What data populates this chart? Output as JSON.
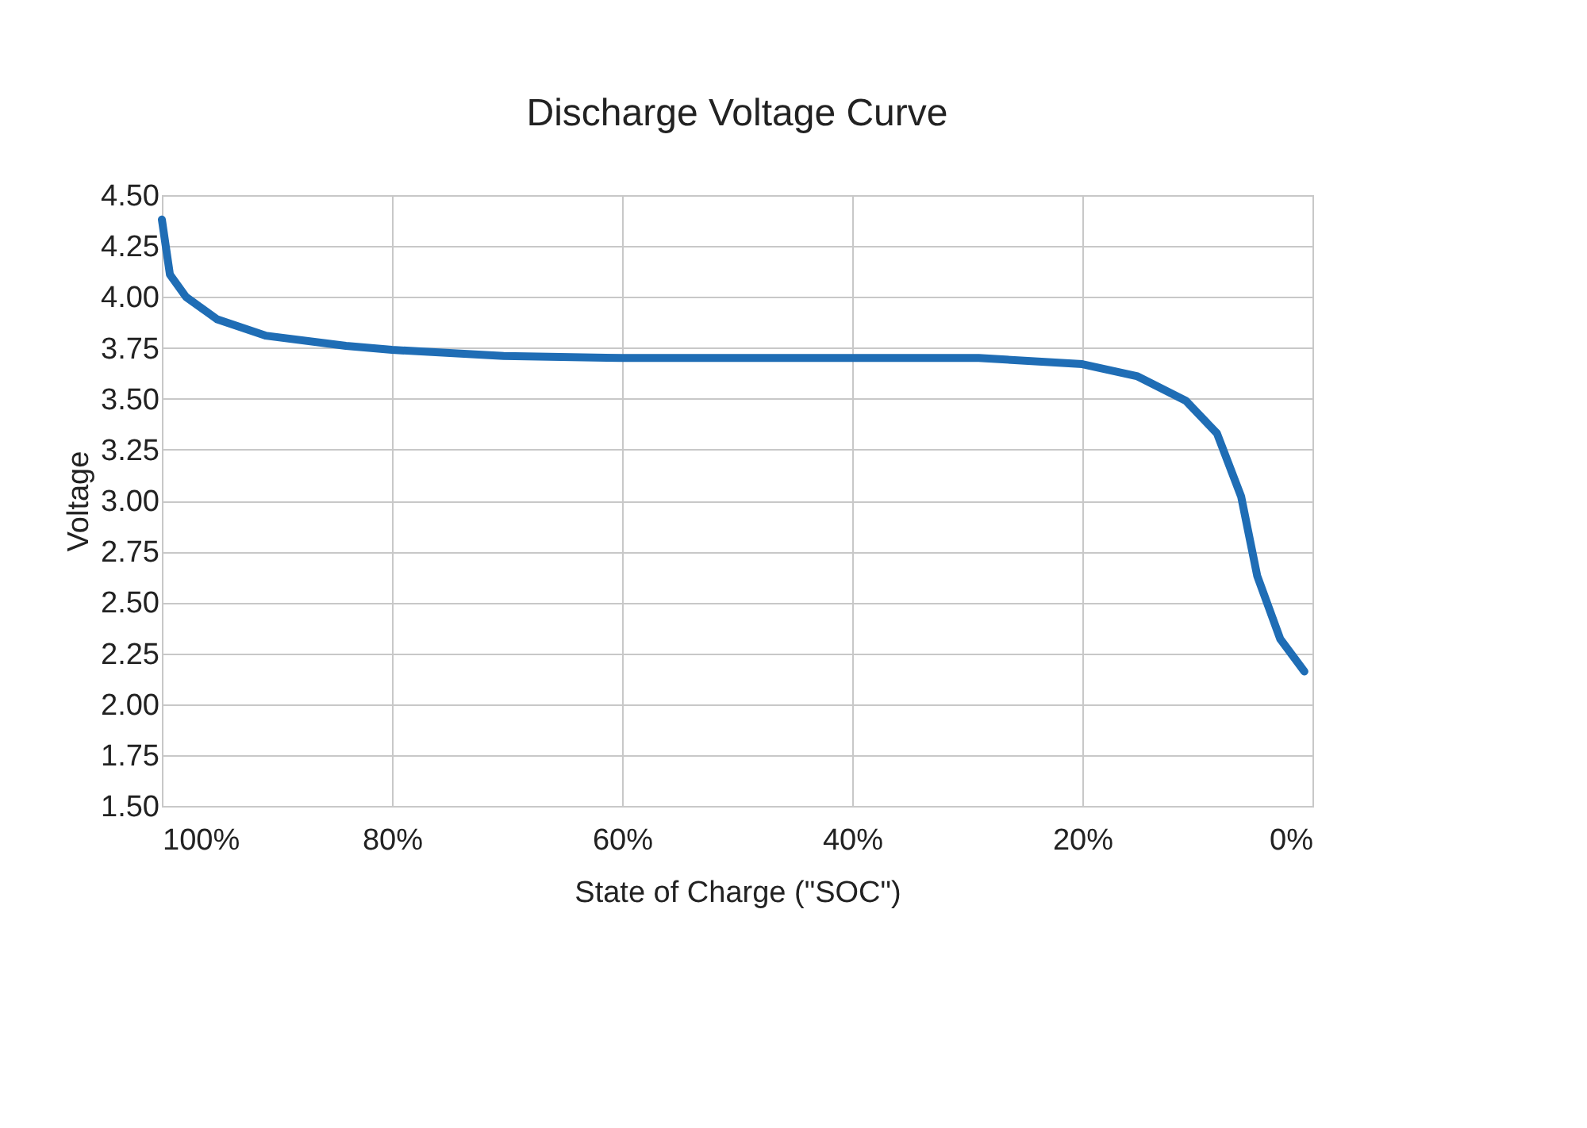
{
  "chart_data": {
    "type": "line",
    "title": "Discharge Voltage Curve",
    "xlabel": "State of Charge (\"SOC\")",
    "ylabel": "Voltage",
    "x": [
      100,
      99.3,
      97.9,
      95.2,
      91,
      84,
      80,
      70.3,
      60,
      40,
      29,
      20,
      15.2,
      11,
      8.3,
      6.2,
      4.8,
      2.8,
      0.7
    ],
    "series": [
      {
        "color": "#1f6db5",
        "values": [
          4.38,
          4.11,
          4.0,
          3.89,
          3.81,
          3.76,
          3.74,
          3.71,
          3.7,
          3.7,
          3.7,
          3.67,
          3.61,
          3.49,
          3.33,
          3.02,
          2.63,
          2.32,
          2.16
        ]
      }
    ],
    "xlim": [
      100,
      0
    ],
    "xticks": [
      {
        "value": 100,
        "label": "100%"
      },
      {
        "value": 80,
        "label": "80%"
      },
      {
        "value": 60,
        "label": "60%"
      },
      {
        "value": 40,
        "label": "40%"
      },
      {
        "value": 20,
        "label": "20%"
      },
      {
        "value": 0,
        "label": "0%"
      }
    ],
    "ylim": [
      1.5,
      4.5
    ],
    "yticks": [
      {
        "value": 1.5,
        "label": "1.50"
      },
      {
        "value": 1.75,
        "label": "1.75"
      },
      {
        "value": 2.0,
        "label": "2.00"
      },
      {
        "value": 2.25,
        "label": "2.25"
      },
      {
        "value": 2.5,
        "label": "2.50"
      },
      {
        "value": 2.75,
        "label": "2.75"
      },
      {
        "value": 3.0,
        "label": "3.00"
      },
      {
        "value": 3.25,
        "label": "3.25"
      },
      {
        "value": 3.5,
        "label": "3.50"
      },
      {
        "value": 3.75,
        "label": "3.75"
      },
      {
        "value": 4.0,
        "label": "4.00"
      },
      {
        "value": 4.25,
        "label": "4.25"
      },
      {
        "value": 4.5,
        "label": "4.50"
      }
    ],
    "grid": true,
    "marker": "none",
    "line_style": "solid",
    "legend": false
  }
}
